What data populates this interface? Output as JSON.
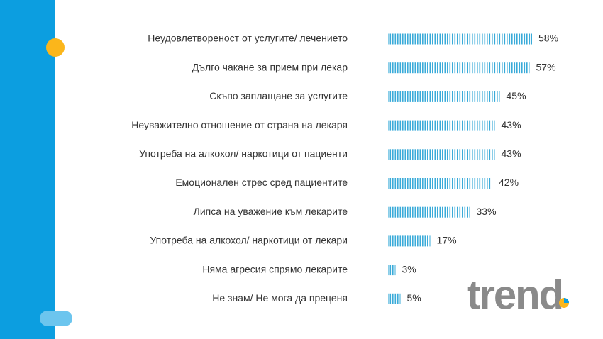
{
  "chart_data": {
    "type": "bar",
    "orientation": "horizontal",
    "categories": [
      "Неудовлетвореност от услугите/ лечението",
      "Дълго чакане за прием при лекар",
      "Скъпо заплащане за услугите",
      "Неуважително отношение от страна на лекаря",
      "Употреба на алкохол/ наркотици от пациенти",
      "Емоционален стрес сред пациентите",
      "Липса на уважение към лекарите",
      "Употреба на алкохол/ наркотици от лекари",
      "Няма агресия спрямо лекарите",
      "Не знам/ Не мога да преценя"
    ],
    "values": [
      58,
      57,
      45,
      43,
      43,
      42,
      33,
      17,
      3,
      5
    ],
    "value_labels": [
      "58%",
      "57%",
      "45%",
      "43%",
      "43%",
      "42%",
      "33%",
      "17%",
      "3%",
      "5%"
    ],
    "color": "#3aabd9"
  },
  "logo": "trend"
}
